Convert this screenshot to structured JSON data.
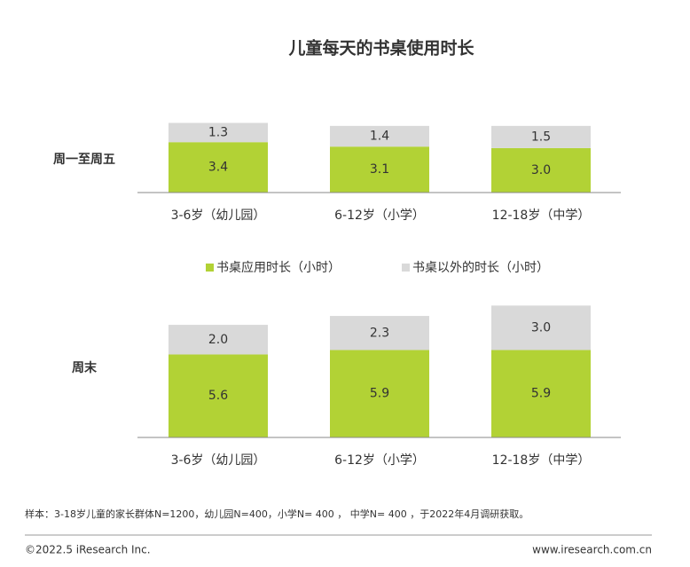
{
  "title": "儿童每天的书桌使用时长",
  "chart_data": [
    {
      "type": "stacked-bar",
      "label": "周一至周五",
      "categories": [
        "3-6岁（幼儿园）",
        "6-12岁（小学）",
        "12-18岁（中学）"
      ],
      "series": [
        {
          "name": "书桌应用时长（小时）",
          "color": "#b2d235",
          "values": [
            3.4,
            3.1,
            3
          ],
          "value_labels": [
            "3.4",
            "3.1",
            "3.0"
          ]
        },
        {
          "name": "书桌以外的时长（小时）",
          "color": "#d9d9d9",
          "values": [
            1.3,
            1.4,
            1.5
          ],
          "value_labels": [
            "1.3",
            "1.4",
            "1.5"
          ]
        }
      ]
    },
    {
      "type": "stacked-bar",
      "label": "周末",
      "categories": [
        "3-6岁（幼儿园）",
        "6-12岁（小学）",
        "12-18岁（中学）"
      ],
      "series": [
        {
          "color": "#b2d235",
          "values": [
            5.6,
            5.9,
            5.9
          ],
          "value_labels": [
            "5.6",
            "5.9",
            "5.9"
          ]
        },
        {
          "color": "#d9d9d9",
          "values": [
            2,
            2.3,
            3
          ],
          "value_labels": [
            "2.0",
            "2.3",
            "3.0"
          ]
        }
      ]
    }
  ],
  "footnote": "样本：3-18岁儿童的家长群体N=1200，幼儿园N=400，小学N= 400 ， 中学N= 400 ，于2022年4月调研获取。",
  "copyright": "©2022.5 iResearch Inc.",
  "url": "www.iresearch.com.cn"
}
